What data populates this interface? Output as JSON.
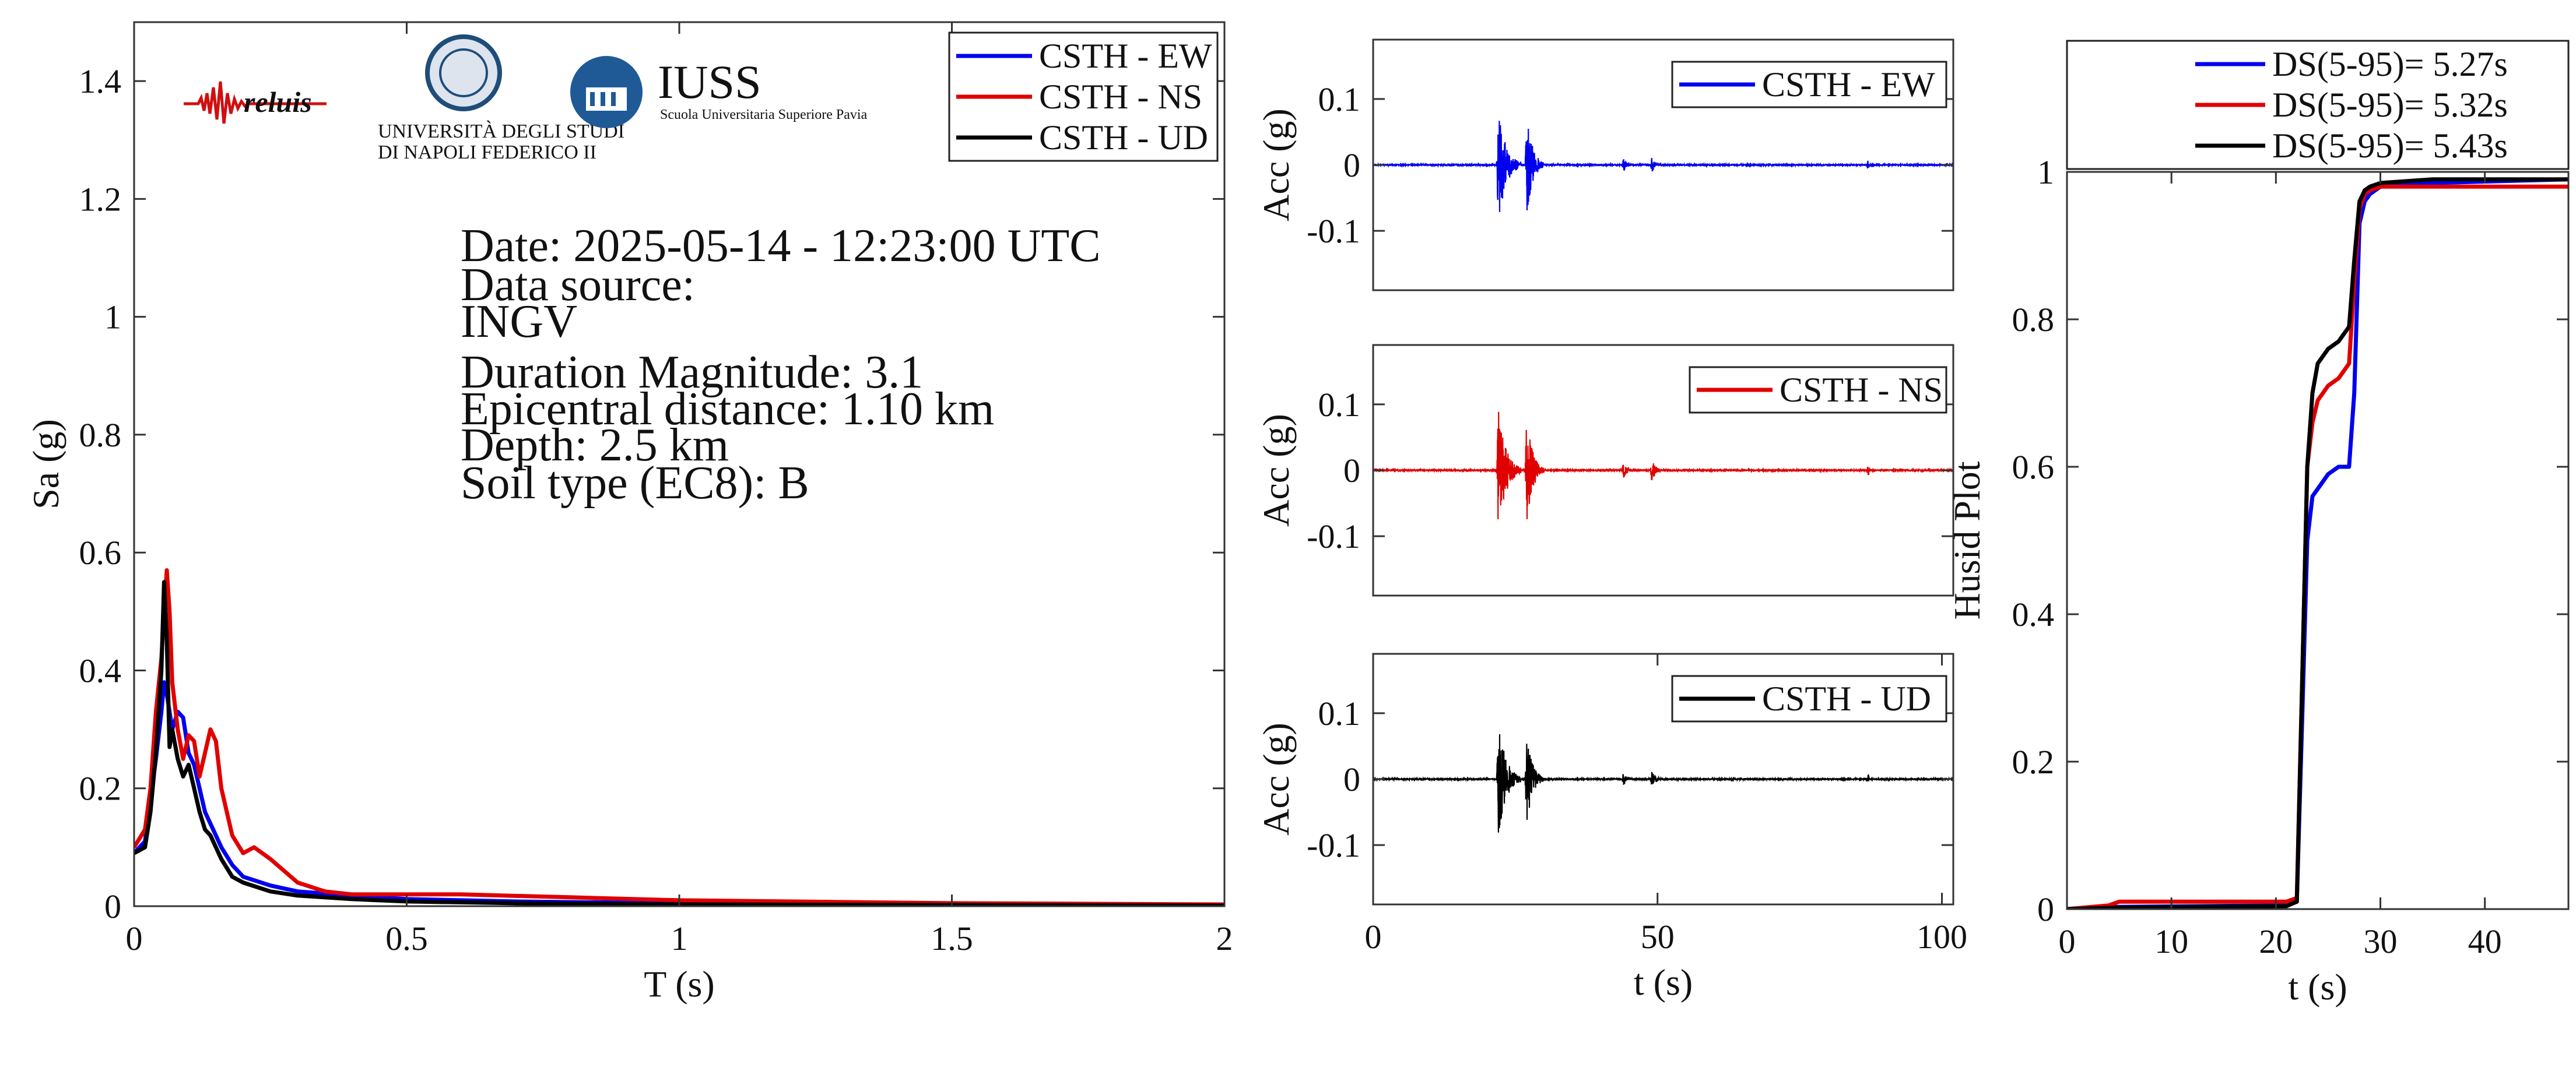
{
  "logos": {
    "reluis": "reluis",
    "unina": [
      "UNIVERSITÀ DEGLI STUDI",
      "DI NAPOLI FEDERICO II"
    ],
    "iuss": "IUSS",
    "iuss_sub": "Scuola Universitaria Superiore Pavia"
  },
  "info": {
    "date": "Date: 2025-05-14 - 12:23:00 UTC",
    "source_label": "Data source:",
    "source": "INGV",
    "magnitude": "Duration Magnitude: 3.1",
    "distance": "Epicentral distance: 1.10 km",
    "depth": "Depth: 2.5 km",
    "soil": "Soil type (EC8): B"
  },
  "colors": {
    "ew": "#0000ee",
    "ns": "#e00000",
    "ud": "#000000"
  },
  "chart_data": [
    {
      "type": "line",
      "xlabel": "T (s)",
      "ylabel": "Sa (g)",
      "xlim": [
        0,
        2
      ],
      "ylim": [
        0,
        1.5
      ],
      "xticks": [
        0,
        0.5,
        1,
        1.5,
        2
      ],
      "xticklabels": [
        "0",
        "0.5",
        "1",
        "1.5",
        "2"
      ],
      "yticks": [
        0,
        0.2,
        0.4,
        0.6,
        0.8,
        1,
        1.2,
        1.4
      ],
      "yticklabels": [
        "0",
        "0.2",
        "0.4",
        "0.6",
        "0.8",
        "1",
        "1.2",
        "1.4"
      ],
      "legend": "top-right",
      "series": [
        {
          "name": "CSTH - EW",
          "color": "#0000ee",
          "x": [
            0,
            0.02,
            0.03,
            0.04,
            0.05,
            0.055,
            0.06,
            0.07,
            0.08,
            0.09,
            0.1,
            0.11,
            0.12,
            0.13,
            0.14,
            0.16,
            0.18,
            0.2,
            0.25,
            0.3,
            0.4,
            0.5,
            0.7,
            1.0,
            1.5,
            2.0
          ],
          "y": [
            0.09,
            0.11,
            0.18,
            0.25,
            0.33,
            0.38,
            0.36,
            0.3,
            0.33,
            0.32,
            0.26,
            0.24,
            0.2,
            0.16,
            0.14,
            0.1,
            0.07,
            0.05,
            0.035,
            0.025,
            0.018,
            0.012,
            0.008,
            0.005,
            0.003,
            0.002
          ]
        },
        {
          "name": "CSTH - NS",
          "color": "#e00000",
          "x": [
            0,
            0.02,
            0.03,
            0.04,
            0.05,
            0.055,
            0.06,
            0.065,
            0.07,
            0.08,
            0.09,
            0.1,
            0.11,
            0.12,
            0.13,
            0.14,
            0.15,
            0.16,
            0.18,
            0.2,
            0.22,
            0.25,
            0.3,
            0.35,
            0.4,
            0.5,
            0.6,
            0.8,
            1.0,
            1.5,
            2.0
          ],
          "y": [
            0.1,
            0.13,
            0.2,
            0.33,
            0.42,
            0.5,
            0.57,
            0.5,
            0.38,
            0.3,
            0.25,
            0.29,
            0.28,
            0.22,
            0.26,
            0.3,
            0.28,
            0.2,
            0.12,
            0.09,
            0.1,
            0.08,
            0.04,
            0.025,
            0.02,
            0.02,
            0.02,
            0.015,
            0.01,
            0.005,
            0.003
          ]
        },
        {
          "name": "CSTH - UD",
          "color": "#000000",
          "x": [
            0,
            0.02,
            0.03,
            0.04,
            0.05,
            0.055,
            0.06,
            0.065,
            0.07,
            0.08,
            0.09,
            0.1,
            0.11,
            0.12,
            0.13,
            0.14,
            0.16,
            0.18,
            0.2,
            0.25,
            0.3,
            0.4,
            0.5,
            0.7,
            1.0,
            1.5,
            2.0
          ],
          "y": [
            0.09,
            0.1,
            0.16,
            0.26,
            0.4,
            0.55,
            0.45,
            0.27,
            0.3,
            0.25,
            0.22,
            0.24,
            0.2,
            0.16,
            0.13,
            0.12,
            0.08,
            0.05,
            0.04,
            0.025,
            0.018,
            0.012,
            0.008,
            0.005,
            0.003,
            0.002,
            0.001
          ]
        }
      ]
    },
    {
      "type": "line",
      "xlabel": "",
      "ylabel": "Acc (g)",
      "xlim": [
        0,
        102
      ],
      "ylim": [
        -0.19,
        0.19
      ],
      "yticks": [
        -0.1,
        0,
        0.1
      ],
      "yticklabels": [
        "-0.1",
        "0",
        "0.1"
      ],
      "legend": "top-right",
      "series": [
        {
          "name": "CSTH - EW",
          "color": "#0000ee",
          "bursts": [
            {
              "t": 22,
              "dur": 4,
              "amp": 0.09
            },
            {
              "t": 27,
              "dur": 3,
              "amp": 0.08
            },
            {
              "t": 44,
              "dur": 2,
              "amp": 0.01
            },
            {
              "t": 49,
              "dur": 2,
              "amp": 0.012
            },
            {
              "t": 87,
              "dur": 0.6,
              "amp": 0.007
            }
          ]
        }
      ]
    },
    {
      "type": "line",
      "xlabel": "",
      "ylabel": "Acc (g)",
      "xlim": [
        0,
        102
      ],
      "ylim": [
        -0.19,
        0.19
      ],
      "yticks": [
        -0.1,
        0,
        0.1
      ],
      "yticklabels": [
        "-0.1",
        "0",
        "0.1"
      ],
      "legend": "top-right",
      "series": [
        {
          "name": "CSTH - NS",
          "color": "#e00000",
          "bursts": [
            {
              "t": 22,
              "dur": 4,
              "amp": 0.095
            },
            {
              "t": 27,
              "dur": 3,
              "amp": 0.085
            },
            {
              "t": 44,
              "dur": 2,
              "amp": 0.012
            },
            {
              "t": 49,
              "dur": 2,
              "amp": 0.018
            },
            {
              "t": 87,
              "dur": 0.6,
              "amp": 0.01
            }
          ]
        }
      ]
    },
    {
      "type": "line",
      "xlabel": "t (s)",
      "ylabel": "Acc (g)",
      "xlim": [
        0,
        102
      ],
      "ylim": [
        -0.19,
        0.19
      ],
      "xticks": [
        0,
        50,
        100
      ],
      "xticklabels": [
        "0",
        "50",
        "100"
      ],
      "yticks": [
        -0.1,
        0,
        0.1
      ],
      "yticklabels": [
        "-0.1",
        "0",
        "0.1"
      ],
      "legend": "top-right",
      "series": [
        {
          "name": "CSTH - UD",
          "color": "#000000",
          "bursts": [
            {
              "t": 22,
              "dur": 4,
              "amp": 0.09
            },
            {
              "t": 27,
              "dur": 3,
              "amp": 0.07
            },
            {
              "t": 44,
              "dur": 2,
              "amp": 0.01
            },
            {
              "t": 49,
              "dur": 2,
              "amp": 0.012
            },
            {
              "t": 87,
              "dur": 0.6,
              "amp": 0.008
            }
          ]
        }
      ]
    },
    {
      "type": "line",
      "xlabel": "t (s)",
      "ylabel": "Husid Plot",
      "xlim": [
        0,
        48
      ],
      "ylim": [
        0,
        1
      ],
      "xticks": [
        0,
        10,
        20,
        30,
        40
      ],
      "xticklabels": [
        "0",
        "10",
        "20",
        "30",
        "40"
      ],
      "yticks": [
        0,
        0.2,
        0.4,
        0.6,
        0.8,
        1
      ],
      "yticklabels": [
        "0",
        "0.2",
        "0.4",
        "0.6",
        "0.8",
        "1"
      ],
      "legend": "above",
      "series": [
        {
          "name": "DS(5-95)= 5.27s",
          "color": "#0000ee",
          "x": [
            0,
            5,
            21,
            22,
            22.5,
            23,
            23.5,
            24,
            24.5,
            25,
            26,
            27,
            27.5,
            28,
            28.5,
            29,
            30,
            35,
            48
          ],
          "y": [
            0,
            0.003,
            0.005,
            0.01,
            0.25,
            0.5,
            0.56,
            0.57,
            0.58,
            0.59,
            0.6,
            0.6,
            0.7,
            0.93,
            0.96,
            0.97,
            0.98,
            0.985,
            0.99
          ]
        },
        {
          "name": "DS(5-95)= 5.32s",
          "color": "#e00000",
          "x": [
            0,
            4,
            5,
            21,
            22,
            22.5,
            23,
            23.5,
            24,
            25,
            26,
            27,
            27.5,
            28,
            28.5,
            29,
            30,
            35,
            48
          ],
          "y": [
            0,
            0.005,
            0.01,
            0.01,
            0.015,
            0.3,
            0.6,
            0.66,
            0.69,
            0.71,
            0.72,
            0.74,
            0.85,
            0.95,
            0.97,
            0.975,
            0.98,
            0.98,
            0.98
          ]
        },
        {
          "name": "DS(5-95)= 5.43s",
          "color": "#000000",
          "x": [
            0,
            5,
            21,
            22,
            22.5,
            23,
            23.5,
            24,
            25,
            26,
            27,
            27.5,
            28,
            28.5,
            29,
            30,
            35,
            48
          ],
          "y": [
            0,
            0.002,
            0.004,
            0.01,
            0.3,
            0.6,
            0.7,
            0.74,
            0.76,
            0.77,
            0.79,
            0.88,
            0.96,
            0.975,
            0.98,
            0.985,
            0.99,
            0.99
          ]
        }
      ]
    }
  ]
}
